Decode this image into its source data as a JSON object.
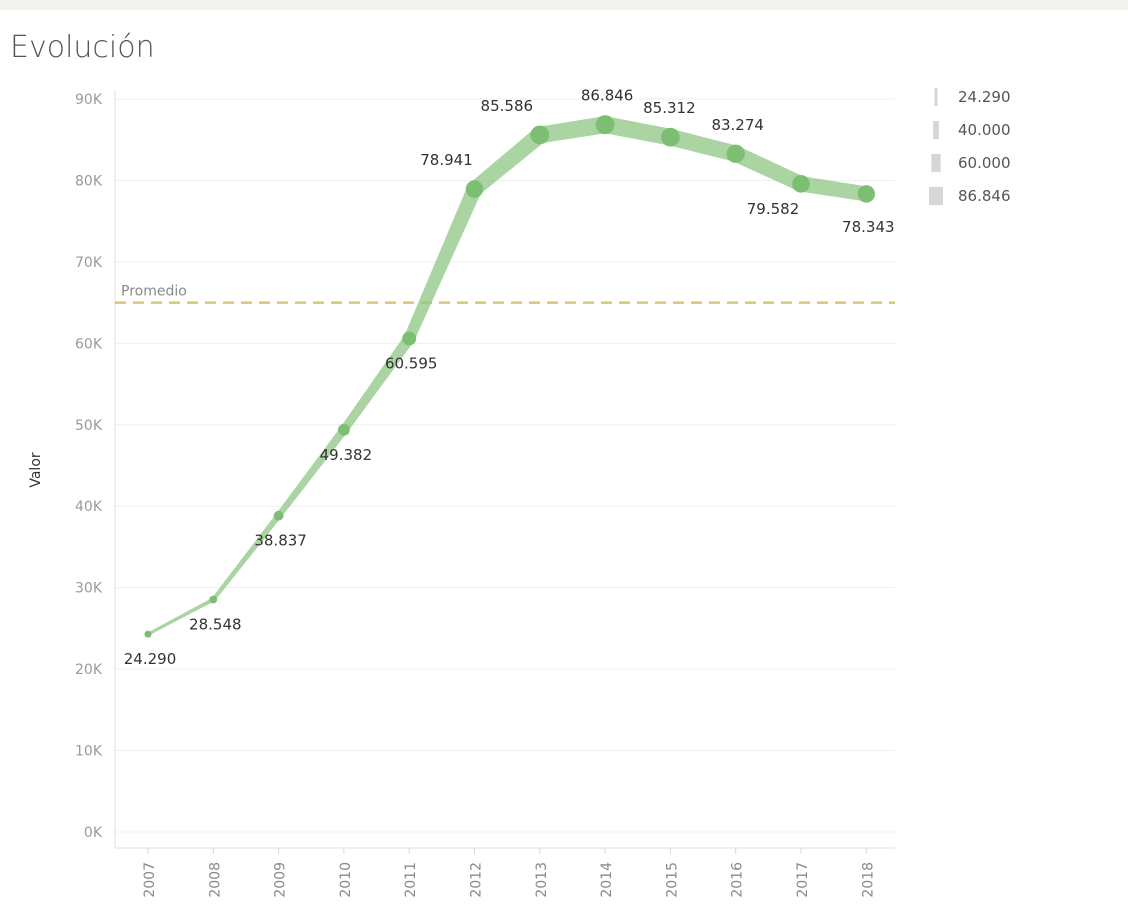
{
  "chart_data": {
    "type": "line",
    "title": "Evolución",
    "ylabel": "Valor",
    "xlabel": "",
    "categories": [
      "2007",
      "2008",
      "2009",
      "2010",
      "2011",
      "2012",
      "2013",
      "2014",
      "2015",
      "2016",
      "2017",
      "2018"
    ],
    "values": [
      24290,
      28548,
      38837,
      49382,
      60595,
      78941,
      85586,
      86846,
      85312,
      83274,
      79582,
      78343
    ],
    "data_labels": [
      "24.290",
      "28.548",
      "38.837",
      "49.382",
      "60.595",
      "78.941",
      "85.586",
      "86.846",
      "85.312",
      "83.274",
      "79.582",
      "78.343"
    ],
    "label_placement": [
      "below",
      "below",
      "below",
      "below",
      "below",
      "above",
      "above",
      "above",
      "above",
      "above",
      "below",
      "below"
    ],
    "ylim": [
      0,
      90000
    ],
    "y_ticks": [
      {
        "value": 0,
        "label": "0K"
      },
      {
        "value": 10000,
        "label": "10K"
      },
      {
        "value": 20000,
        "label": "20K"
      },
      {
        "value": 30000,
        "label": "30K"
      },
      {
        "value": 40000,
        "label": "40K"
      },
      {
        "value": 50000,
        "label": "50K"
      },
      {
        "value": 60000,
        "label": "60K"
      },
      {
        "value": 70000,
        "label": "70K"
      },
      {
        "value": 80000,
        "label": "80K"
      },
      {
        "value": 90000,
        "label": "90K"
      }
    ],
    "grid": true,
    "reference_line": {
      "label": "Promedio",
      "value": 65000,
      "color": "#d8c77a",
      "style": "dashed"
    },
    "series_color": "#8fc584",
    "size_encoding": "line width and point size grow with value",
    "legend": {
      "placement": "top-right",
      "entries": [
        {
          "label": "24.290",
          "value": 24290
        },
        {
          "label": "40.000",
          "value": 40000
        },
        {
          "label": "60.000",
          "value": 60000
        },
        {
          "label": "86.846",
          "value": 86846
        }
      ]
    }
  }
}
